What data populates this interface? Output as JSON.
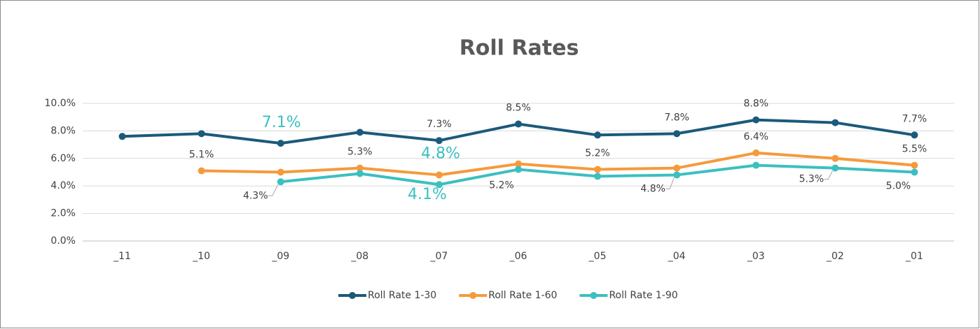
{
  "chart_data": {
    "type": "line",
    "title": "Roll Rates",
    "categories": [
      "_11",
      "_10",
      "_09",
      "_08",
      "_07",
      "_06",
      "_05",
      "_04",
      "_03",
      "_02",
      "_01"
    ],
    "ylim": [
      0,
      10
    ],
    "yticks": [
      {
        "value": 0,
        "label": "0.0%"
      },
      {
        "value": 2,
        "label": "2.0%"
      },
      {
        "value": 4,
        "label": "4.0%"
      },
      {
        "value": 6,
        "label": "6.0%"
      },
      {
        "value": 8,
        "label": "8.0%"
      },
      {
        "value": 10,
        "label": "10.0%"
      }
    ],
    "grid": true,
    "legend": "bottom",
    "series": [
      {
        "name": "Roll Rate 1-30",
        "color": "#1b5a7a",
        "values": [
          7.6,
          7.8,
          7.1,
          7.9,
          7.3,
          8.5,
          7.7,
          7.8,
          8.8,
          8.6,
          7.7
        ],
        "value_labels": [
          null,
          null,
          "7.1%",
          null,
          "7.3%",
          "8.5%",
          null,
          "7.8%",
          "8.8%",
          null,
          "7.7%"
        ]
      },
      {
        "name": "Roll Rate 1-60",
        "color": "#f59a3c",
        "values": [
          null,
          5.1,
          5.0,
          5.3,
          4.8,
          5.6,
          5.2,
          5.3,
          6.4,
          6.0,
          5.5
        ],
        "value_labels": [
          null,
          "5.1%",
          null,
          "5.3%",
          "4.8%",
          null,
          "5.2%",
          null,
          "6.4%",
          null,
          "5.5%"
        ]
      },
      {
        "name": "Roll Rate 1-90",
        "color": "#3bbfc0",
        "values": [
          null,
          null,
          4.3,
          4.9,
          4.1,
          5.2,
          4.7,
          4.8,
          5.5,
          5.3,
          5.0
        ],
        "value_labels": [
          null,
          null,
          "4.3%",
          null,
          "4.1%",
          "5.2%",
          null,
          "4.8%",
          null,
          "5.3%",
          "5.0%"
        ]
      }
    ]
  }
}
